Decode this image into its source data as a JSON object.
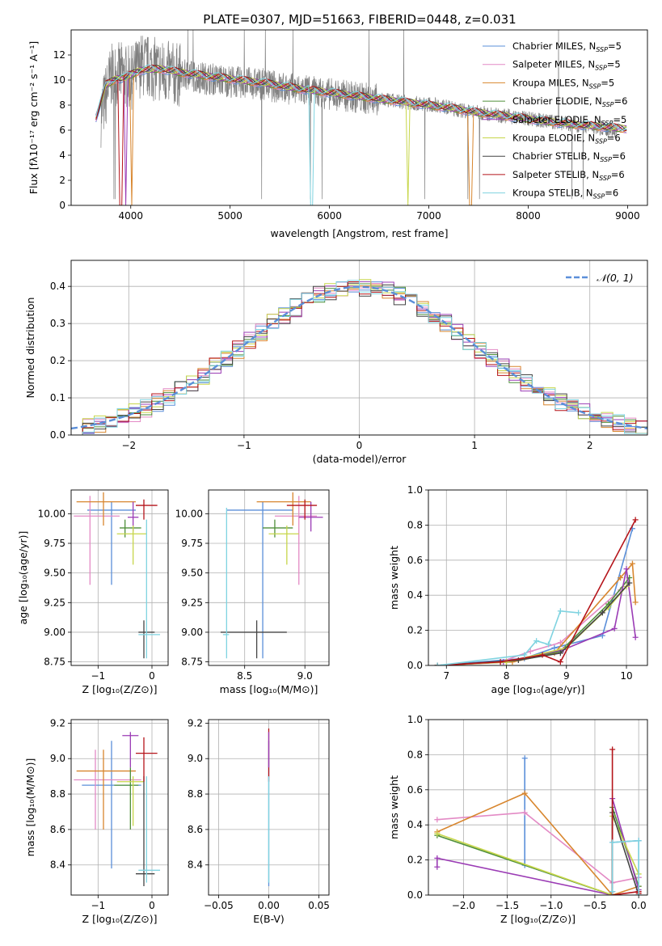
{
  "figure": {
    "title": "PLATE=0307, MJD=51663, FIBERID=0448, z=0.031"
  },
  "models": [
    {
      "name": "Chabrier MILES",
      "nssp": "5",
      "color": "#5b8fd9"
    },
    {
      "name": "Salpeter MILES",
      "nssp": "5",
      "color": "#e38ac5"
    },
    {
      "name": "Kroupa MILES",
      "nssp": "5",
      "color": "#d8862e"
    },
    {
      "name": "Chabrier ELODIE",
      "nssp": "6",
      "color": "#4f8f3a"
    },
    {
      "name": "Salpeter ELODIE",
      "nssp": "5",
      "color": "#9b3cb5"
    },
    {
      "name": "Kroupa ELODIE",
      "nssp": "6",
      "color": "#c7d64a"
    },
    {
      "name": "Chabrier STELIB",
      "nssp": "6",
      "color": "#444444"
    },
    {
      "name": "Salpeter STELIB",
      "nssp": "6",
      "color": "#b5141a"
    },
    {
      "name": "Kroupa STELIB",
      "nssp": "6",
      "color": "#7fd3e0"
    }
  ],
  "chart_data": [
    {
      "id": "spectrum",
      "type": "line",
      "xlabel": "wavelength [Angstrom, rest frame]",
      "ylabel": "Flux [fλ10⁻¹⁷ erg cm⁻² s⁻¹ A⁻¹]",
      "xlim": [
        3400,
        9200
      ],
      "ylim": [
        0,
        14
      ],
      "xticks": [
        "4000",
        "5000",
        "6000",
        "7000",
        "8000",
        "9000"
      ],
      "yticks": [
        "0",
        "2",
        "4",
        "6",
        "8",
        "10",
        "12"
      ],
      "data_series": {
        "name": "data",
        "color": "#808080",
        "x": [
          3700,
          3800,
          3900,
          4000,
          4100,
          4200,
          4300,
          4400,
          4500,
          4700,
          4900,
          5100,
          5300,
          5500,
          5700,
          5900,
          6100,
          6300,
          6500,
          6700,
          6900,
          7100,
          7300,
          7500,
          7700,
          7900,
          8100,
          8300,
          8500,
          8700,
          8900
        ],
        "y": [
          7.2,
          10.3,
          10.5,
          10.1,
          11.2,
          11.0,
          10.7,
          10.5,
          10.4,
          10.2,
          10.0,
          9.8,
          9.7,
          9.4,
          9.2,
          9.0,
          8.8,
          8.6,
          8.4,
          8.3,
          8.1,
          8.0,
          7.6,
          7.4,
          7.2,
          7.0,
          6.8,
          6.6,
          6.4,
          6.2,
          6.0
        ]
      },
      "model_x": [
        3650,
        3750,
        3850,
        3950,
        4100,
        4300,
        4500,
        4800,
        5100,
        5400,
        5700,
        6000,
        6300,
        6600,
        6900,
        7200,
        7500,
        7800,
        8100,
        8400,
        8700,
        9000
      ],
      "model_y": [
        7.0,
        9.6,
        10.1,
        10.2,
        10.8,
        10.9,
        10.6,
        10.3,
        10.0,
        9.7,
        9.3,
        9.0,
        8.7,
        8.4,
        8.1,
        7.8,
        7.4,
        7.1,
        6.8,
        6.5,
        6.3,
        6.1
      ],
      "dropouts": [
        {
          "model": 7,
          "x": 3900
        },
        {
          "model": 2,
          "x": 4010
        },
        {
          "model": 4,
          "x": 3950
        },
        {
          "model": 8,
          "x": 5820
        },
        {
          "model": 5,
          "x": 6790
        },
        {
          "model": 2,
          "x": 7420
        }
      ]
    },
    {
      "id": "residuals",
      "type": "histogram",
      "xlabel": "(data-model)/error",
      "ylabel": "Normed distribution",
      "xlim": [
        -2.5,
        2.5
      ],
      "ylim": [
        0,
        0.47
      ],
      "xticks": [
        "−2",
        "−1",
        "0",
        "1",
        "2"
      ],
      "xtick_values": [
        -2,
        -1,
        0,
        1,
        2
      ],
      "yticks": [
        "0.0",
        "0.1",
        "0.2",
        "0.3",
        "0.4"
      ],
      "ytick_values": [
        0,
        0.1,
        0.2,
        0.3,
        0.4
      ],
      "bin_width": 0.1,
      "reference": {
        "label": "𝒩(0, 1)",
        "color": "#5b8fd9"
      },
      "grid": true
    },
    {
      "id": "age-vs-Z",
      "type": "errorbar",
      "xlabel": "Z [log₁₀(Z/Z⊙)]",
      "ylabel": "age  [log₁₀(age/yr)]",
      "xlim": [
        -1.5,
        0.3
      ],
      "ylim": [
        8.72,
        10.2
      ],
      "xticks": [
        "−1",
        "0"
      ],
      "xtick_values": [
        -1,
        0
      ],
      "yticks": [
        "8.75",
        "9.00",
        "9.25",
        "9.50",
        "9.75",
        "10.00"
      ],
      "ytick_values": [
        8.75,
        9.0,
        9.25,
        9.5,
        9.75,
        10.0
      ],
      "points": [
        {
          "m": 0,
          "x": -0.75,
          "xe": [
            -1.2,
            -0.3
          ],
          "y": 10.03,
          "ye": [
            9.4,
            10.1
          ]
        },
        {
          "m": 1,
          "x": -1.15,
          "xe": [
            -1.45,
            -0.6
          ],
          "y": 9.98,
          "ye": [
            9.4,
            10.15
          ]
        },
        {
          "m": 2,
          "x": -0.9,
          "xe": [
            -1.4,
            -0.3
          ],
          "y": 10.1,
          "ye": [
            9.9,
            10.18
          ]
        },
        {
          "m": 3,
          "x": -0.5,
          "xe": [
            -0.6,
            -0.2
          ],
          "y": 9.88,
          "ye": [
            9.8,
            9.95
          ]
        },
        {
          "m": 4,
          "x": -0.35,
          "xe": [
            -0.45,
            -0.25
          ],
          "y": 9.97,
          "ye": [
            9.85,
            10.1
          ]
        },
        {
          "m": 5,
          "x": -0.35,
          "xe": [
            -0.65,
            -0.1
          ],
          "y": 9.83,
          "ye": [
            9.57,
            9.9
          ]
        },
        {
          "m": 6,
          "x": -0.15,
          "xe": [
            -0.25,
            0.05
          ],
          "y": 9.0,
          "ye": [
            8.78,
            9.1
          ]
        },
        {
          "m": 7,
          "x": -0.15,
          "xe": [
            -0.3,
            0.1
          ],
          "y": 10.07,
          "ye": [
            9.95,
            10.12
          ]
        },
        {
          "m": 8,
          "x": -0.1,
          "xe": [
            -0.25,
            0.15
          ],
          "y": 8.98,
          "ye": [
            8.78,
            9.95
          ]
        }
      ]
    },
    {
      "id": "age-vs-mass",
      "type": "errorbar",
      "xlabel": "mass [log₁₀(M/M⊙)]",
      "ylabel": "",
      "xlim": [
        8.2,
        9.2
      ],
      "ylim": [
        8.72,
        10.2
      ],
      "xticks": [
        "8.5",
        "9.0"
      ],
      "xtick_values": [
        8.5,
        9.0
      ],
      "yticks": [
        "8.75",
        "9.00",
        "9.25",
        "9.50",
        "9.75",
        "10.00"
      ],
      "ytick_values": [
        8.75,
        9.0,
        9.25,
        9.5,
        9.75,
        10.0
      ],
      "points": [
        {
          "m": 0,
          "x": 8.65,
          "xe": [
            8.35,
            8.9
          ],
          "y": 10.03,
          "ye": [
            8.78,
            10.1
          ]
        },
        {
          "m": 1,
          "x": 8.95,
          "xe": [
            8.75,
            9.1
          ],
          "y": 9.98,
          "ye": [
            9.4,
            10.15
          ]
        },
        {
          "m": 2,
          "x": 8.9,
          "xe": [
            8.6,
            9.05
          ],
          "y": 10.1,
          "ye": [
            9.9,
            10.18
          ]
        },
        {
          "m": 3,
          "x": 8.75,
          "xe": [
            8.65,
            8.9
          ],
          "y": 9.88,
          "ye": [
            9.8,
            9.95
          ]
        },
        {
          "m": 4,
          "x": 9.05,
          "xe": [
            8.95,
            9.15
          ],
          "y": 9.97,
          "ye": [
            9.85,
            10.1
          ]
        },
        {
          "m": 5,
          "x": 8.85,
          "xe": [
            8.7,
            8.95
          ],
          "y": 9.83,
          "ye": [
            9.57,
            9.9
          ]
        },
        {
          "m": 6,
          "x": 8.6,
          "xe": [
            8.3,
            8.85
          ],
          "y": 9.0,
          "ye": [
            8.78,
            9.1
          ]
        },
        {
          "m": 7,
          "x": 9.0,
          "xe": [
            8.85,
            9.1
          ],
          "y": 10.07,
          "ye": [
            9.95,
            10.12
          ]
        },
        {
          "m": 8,
          "x": 8.35,
          "xe": [
            8.32,
            8.37
          ],
          "y": 8.98,
          "ye": [
            8.78,
            10.05
          ]
        }
      ]
    },
    {
      "id": "weight-vs-age",
      "type": "line",
      "xlabel": "age  [log₁₀(age/yr)]",
      "ylabel": "mass weight",
      "xlim": [
        6.7,
        10.35
      ],
      "ylim": [
        0,
        1
      ],
      "xticks": [
        "7",
        "8",
        "9",
        "10"
      ],
      "xtick_values": [
        7,
        8,
        9,
        10
      ],
      "yticks": [
        "0.0",
        "0.2",
        "0.4",
        "0.6",
        "0.8",
        "1.0"
      ],
      "ytick_values": [
        0,
        0.2,
        0.4,
        0.6,
        0.8,
        1.0
      ],
      "series": [
        {
          "m": 0,
          "x": [
            6.85,
            8.3,
            8.8,
            9.6,
            10.1
          ],
          "y": [
            0.0,
            0.04,
            0.1,
            0.17,
            0.78
          ]
        },
        {
          "m": 1,
          "x": [
            6.85,
            7.9,
            8.4,
            8.9,
            9.9
          ],
          "y": [
            0.0,
            0.02,
            0.08,
            0.13,
            0.43
          ]
        },
        {
          "m": 2,
          "x": [
            6.85,
            8.1,
            8.8,
            9.9,
            10.1,
            10.15
          ],
          "y": [
            0.0,
            0.02,
            0.07,
            0.5,
            0.58,
            0.36
          ]
        },
        {
          "m": 3,
          "x": [
            6.85,
            8.0,
            8.9,
            9.7,
            10.05
          ],
          "y": [
            0.0,
            0.02,
            0.08,
            0.35,
            0.5
          ]
        },
        {
          "m": 4,
          "x": [
            6.85,
            7.95,
            8.95,
            9.8,
            10.0,
            10.15
          ],
          "y": [
            0.0,
            0.02,
            0.09,
            0.21,
            0.55,
            0.16
          ]
        },
        {
          "m": 5,
          "x": [
            6.85,
            8.0,
            9.0,
            9.7,
            10.0
          ],
          "y": [
            0.0,
            0.02,
            0.1,
            0.33,
            0.45
          ]
        },
        {
          "m": 6,
          "x": [
            6.85,
            8.2,
            8.9,
            9.6,
            10.05
          ],
          "y": [
            0.0,
            0.03,
            0.07,
            0.3,
            0.47
          ]
        },
        {
          "m": 7,
          "x": [
            6.85,
            7.9,
            8.6,
            8.9,
            10.15
          ],
          "y": [
            0.0,
            0.02,
            0.06,
            0.02,
            0.83
          ]
        },
        {
          "m": 8,
          "x": [
            6.85,
            8.3,
            8.5,
            8.7,
            8.9,
            9.2
          ],
          "y": [
            0.0,
            0.06,
            0.14,
            0.12,
            0.31,
            0.3
          ]
        }
      ]
    },
    {
      "id": "mass-vs-Z",
      "type": "errorbar",
      "xlabel": "Z [log₁₀(Z/Z⊙)]",
      "ylabel": "mass [log₁₀(M/M⊙)]",
      "xlim": [
        -1.5,
        0.3
      ],
      "ylim": [
        8.23,
        9.22
      ],
      "xticks": [
        "−1",
        "0"
      ],
      "xtick_values": [
        -1,
        0
      ],
      "yticks": [
        "8.4",
        "8.6",
        "8.8",
        "9.0",
        "9.2"
      ],
      "ytick_values": [
        8.4,
        8.6,
        8.8,
        9.0,
        9.2
      ],
      "points": [
        {
          "m": 0,
          "x": -0.75,
          "xe": [
            -1.3,
            -0.2
          ],
          "y": 8.85,
          "ye": [
            8.38,
            9.1
          ]
        },
        {
          "m": 1,
          "x": -1.05,
          "xe": [
            -1.45,
            -0.2
          ],
          "y": 8.88,
          "ye": [
            8.6,
            9.05
          ]
        },
        {
          "m": 2,
          "x": -0.9,
          "xe": [
            -1.4,
            -0.3
          ],
          "y": 8.93,
          "ye": [
            8.6,
            9.05
          ]
        },
        {
          "m": 3,
          "x": -0.4,
          "xe": [
            -0.7,
            -0.25
          ],
          "y": 8.85,
          "ye": [
            8.6,
            8.95
          ]
        },
        {
          "m": 4,
          "x": -0.4,
          "xe": [
            -0.55,
            -0.25
          ],
          "y": 9.13,
          "ye": [
            8.95,
            9.15
          ]
        },
        {
          "m": 5,
          "x": -0.35,
          "xe": [
            -0.65,
            -0.15
          ],
          "y": 8.87,
          "ye": [
            8.62,
            8.9
          ]
        },
        {
          "m": 6,
          "x": -0.15,
          "xe": [
            -0.3,
            0.05
          ],
          "y": 8.35,
          "ye": [
            8.28,
            8.9
          ]
        },
        {
          "m": 7,
          "x": -0.15,
          "xe": [
            -0.3,
            0.1
          ],
          "y": 9.03,
          "ye": [
            8.87,
            9.12
          ]
        },
        {
          "m": 8,
          "x": -0.1,
          "xe": [
            -0.25,
            0.15
          ],
          "y": 8.37,
          "ye": [
            8.3,
            8.9
          ]
        }
      ]
    },
    {
      "id": "mass-vs-ebv",
      "type": "errorbar",
      "xlabel": "E(B-V)",
      "ylabel": "",
      "xlim": [
        -0.06,
        0.06
      ],
      "ylim": [
        8.23,
        9.22
      ],
      "xticks": [
        "−0.05",
        "0.00",
        "0.05"
      ],
      "xtick_values": [
        -0.05,
        0.0,
        0.05
      ],
      "yticks": [
        "8.4",
        "8.6",
        "8.8",
        "9.0",
        "9.2"
      ],
      "ytick_values": [
        8.4,
        8.6,
        8.8,
        9.0,
        9.2
      ],
      "points": [
        {
          "m": 0,
          "x": 0.0,
          "xe": [
            0.0,
            0.0
          ],
          "y": 8.85,
          "ye": [
            8.28,
            9.1
          ]
        },
        {
          "m": 7,
          "x": 0.0,
          "xe": [
            0.0,
            0.0
          ],
          "y": 9.03,
          "ye": [
            8.87,
            9.17
          ]
        },
        {
          "m": 4,
          "x": 0.0,
          "xe": [
            0.0,
            0.0
          ],
          "y": 9.13,
          "ye": [
            8.95,
            9.15
          ]
        },
        {
          "m": 8,
          "x": 0.0,
          "xe": [
            0.0,
            0.0
          ],
          "y": 8.37,
          "ye": [
            8.3,
            8.9
          ]
        }
      ]
    },
    {
      "id": "weight-vs-Z",
      "type": "line",
      "xlabel": "Z [log₁₀(Z/Z⊙)]",
      "ylabel": "mass weight",
      "xlim": [
        -2.4,
        0.1
      ],
      "ylim": [
        0,
        1
      ],
      "xticks": [
        "−2.0",
        "−1.5",
        "−1.0",
        "−0.5",
        "0.0"
      ],
      "xtick_values": [
        -2.0,
        -1.5,
        -1.0,
        -0.5,
        0.0
      ],
      "yticks": [
        "0.0",
        "0.2",
        "0.4",
        "0.6",
        "0.8",
        "1.0"
      ],
      "ytick_values": [
        0,
        0.2,
        0.4,
        0.6,
        0.8,
        1.0
      ],
      "series": [
        {
          "m": 0,
          "x": [
            -1.3,
            -1.3,
            -0.3,
            -0.3,
            0.0,
            0.0
          ],
          "y": [
            0.78,
            0.17,
            0.0,
            0.3,
            0.31,
            0.1
          ]
        },
        {
          "m": 1,
          "x": [
            -2.3,
            -1.3,
            -0.3,
            0.0
          ],
          "y": [
            0.43,
            0.47,
            0.07,
            0.1
          ]
        },
        {
          "m": 2,
          "x": [
            -2.3,
            -1.3,
            -0.3,
            0.0
          ],
          "y": [
            0.36,
            0.58,
            0.0,
            0.05
          ]
        },
        {
          "m": 3,
          "x": [
            -2.3,
            -0.3,
            -0.3,
            0.0
          ],
          "y": [
            0.34,
            0.0,
            0.5,
            0.05
          ]
        },
        {
          "m": 4,
          "x": [
            -2.3,
            -2.3,
            -0.3,
            -0.3,
            0.0
          ],
          "y": [
            0.16,
            0.21,
            0.0,
            0.55,
            0.03
          ]
        },
        {
          "m": 5,
          "x": [
            -2.3,
            -0.3,
            -0.3,
            0.0
          ],
          "y": [
            0.35,
            0.0,
            0.45,
            0.12
          ]
        },
        {
          "m": 6,
          "x": [
            -0.3,
            -0.3,
            0.0
          ],
          "y": [
            0.02,
            0.47,
            0.0
          ]
        },
        {
          "m": 7,
          "x": [
            -0.3,
            -0.3,
            0.0,
            0.0
          ],
          "y": [
            0.83,
            0.0,
            0.02,
            0.01
          ]
        },
        {
          "m": 8,
          "x": [
            -0.3,
            -0.3,
            0.0,
            0.0
          ],
          "y": [
            0.02,
            0.3,
            0.31,
            0.0
          ]
        }
      ]
    }
  ]
}
